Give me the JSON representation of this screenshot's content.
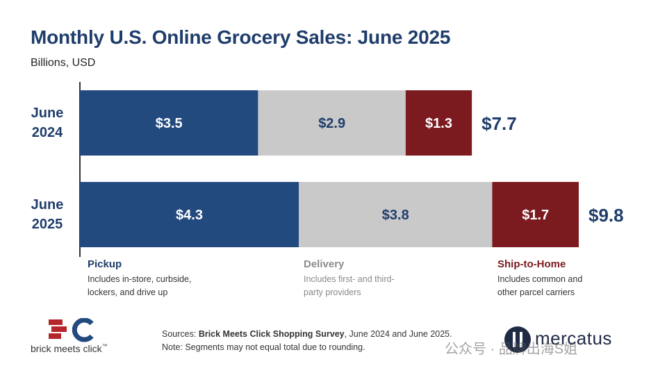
{
  "title": "Monthly U.S. Online Grocery Sales: June 2025",
  "subtitle": "Billions, USD",
  "colors": {
    "pickup": "#234a7f",
    "delivery": "#c9c9c9",
    "ship": "#7b1a1f",
    "title": "#1f3d6b",
    "total": "#1f3d6b"
  },
  "chart_data": {
    "type": "bar",
    "orientation": "horizontal",
    "stacked": true,
    "categories": [
      "June\n2024",
      "June\n2025"
    ],
    "series": [
      {
        "name": "Pickup",
        "values": [
          3.5,
          4.3
        ],
        "labels": [
          "$3.5",
          "$4.3"
        ]
      },
      {
        "name": "Delivery",
        "values": [
          2.9,
          3.8
        ],
        "labels": [
          "$2.9",
          "$3.8"
        ]
      },
      {
        "name": "Ship-to-Home",
        "values": [
          1.3,
          1.7
        ],
        "labels": [
          "$1.3",
          "$1.7"
        ]
      }
    ],
    "totals": [
      "$7.7",
      "$9.8"
    ],
    "total_values": [
      7.7,
      9.8
    ],
    "xlim": [
      0,
      9.8
    ],
    "grid": false
  },
  "legend": {
    "pickup": {
      "title": "Pickup",
      "desc": "Includes in-store, curbside,\nlockers, and drive up"
    },
    "delivery": {
      "title": "Delivery",
      "desc": "Includes first- and third-\nparty providers"
    },
    "ship": {
      "title": "Ship-to-Home",
      "desc": "Includes common and\nother parcel carriers"
    }
  },
  "sources": {
    "prefix": "Sources: ",
    "bold": "Brick Meets Click Shopping Survey",
    "suffix": ", June 2024 and June 2025.",
    "note": "Note: Segments may not equal total due to rounding."
  },
  "logos": {
    "bmc_text": "brick meets click",
    "bmc_tm": "™",
    "mercatus_text": "mercatus"
  },
  "watermark": "公众号 · 品牌出海S姐"
}
